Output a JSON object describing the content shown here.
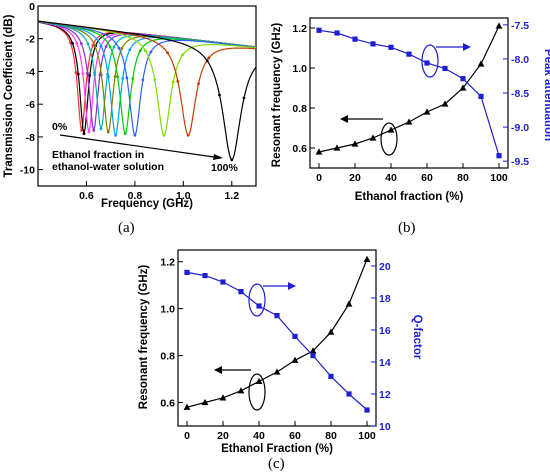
{
  "panels": {
    "a": "(a)",
    "b": "(b)",
    "c": "(c)"
  },
  "colors": {
    "black_series": "#000000",
    "blue_series": "#1f1fd0"
  },
  "chart_data": [
    {
      "id": "a",
      "type": "line",
      "xlabel": "Frequency (GHz)",
      "ylabel": "Transmission Coefficient (dB)",
      "xlim": [
        0.4,
        1.3
      ],
      "ylim": [
        -11,
        0
      ],
      "xticks": [
        0.6,
        0.8,
        1.0,
        1.2
      ],
      "yticks": [
        0,
        -2,
        -4,
        -6,
        -8,
        -10
      ],
      "annotations": {
        "start": "0%",
        "end": "100%",
        "note_line1": "Ethanol fraction in",
        "note_line2": "ethanol-water solution"
      },
      "series": [
        {
          "color": "#ff3030",
          "resonance_ghz": 0.58,
          "min_db": -7.6
        },
        {
          "color": "#000000",
          "resonance_ghz": 0.59,
          "min_db": -7.8
        },
        {
          "color": "#ff40ff",
          "resonance_ghz": 0.61,
          "min_db": -7.7
        },
        {
          "color": "#8a2be2",
          "resonance_ghz": 0.63,
          "min_db": -7.6
        },
        {
          "color": "#00b0b0",
          "resonance_ghz": 0.66,
          "min_db": -7.5
        },
        {
          "color": "#808000",
          "resonance_ghz": 0.69,
          "min_db": -7.7
        },
        {
          "color": "#00a0ff",
          "resonance_ghz": 0.72,
          "min_db": -7.9
        },
        {
          "color": "#00cc00",
          "resonance_ghz": 0.76,
          "min_db": -7.8
        },
        {
          "color": "#3060ff",
          "resonance_ghz": 0.8,
          "min_db": -7.9
        },
        {
          "color": "#7fe000",
          "resonance_ghz": 0.92,
          "min_db": -7.9
        },
        {
          "color": "#c04000",
          "resonance_ghz": 1.02,
          "min_db": -7.9
        },
        {
          "color": "#000000",
          "resonance_ghz": 1.2,
          "min_db": -9.4
        }
      ]
    },
    {
      "id": "b",
      "type": "line",
      "xlabel": "Ethanol fraction (%)",
      "ylabel": "Resonant frequency (GHz)",
      "y2label": "Peak attenuation",
      "xlim": [
        -5,
        105
      ],
      "ylim": [
        0.5,
        1.25
      ],
      "y2lim": [
        -9.6,
        -7.4
      ],
      "xticks": [
        0,
        20,
        40,
        60,
        80,
        100
      ],
      "yticks": [
        0.6,
        0.8,
        1.0,
        1.2
      ],
      "y2ticks": [
        -7.5,
        -8.0,
        -8.5,
        -9.0,
        -9.5
      ],
      "x": [
        0,
        10,
        20,
        30,
        40,
        50,
        60,
        70,
        80,
        90,
        100
      ],
      "series": [
        {
          "axis": "left",
          "marker": "triangle",
          "values": [
            0.58,
            0.6,
            0.62,
            0.65,
            0.69,
            0.73,
            0.78,
            0.82,
            0.9,
            1.02,
            1.21
          ]
        },
        {
          "axis": "right",
          "marker": "square",
          "values": [
            -7.58,
            -7.62,
            -7.71,
            -7.78,
            -7.83,
            -7.93,
            -8.06,
            -8.14,
            -8.29,
            -8.55,
            -9.42
          ]
        }
      ]
    },
    {
      "id": "c",
      "type": "line",
      "xlabel": "Ethanol Fraction (%)",
      "ylabel": "Resonant frequency (GHz)",
      "y2label": "Q-factor",
      "xlim": [
        -5,
        105
      ],
      "ylim": [
        0.5,
        1.25
      ],
      "y2lim": [
        10,
        21
      ],
      "xticks": [
        0,
        20,
        40,
        60,
        80,
        100
      ],
      "yticks": [
        0.6,
        0.8,
        1.0,
        1.2
      ],
      "y2ticks": [
        10,
        12,
        14,
        16,
        18,
        20
      ],
      "x": [
        0,
        10,
        20,
        30,
        40,
        50,
        60,
        70,
        80,
        90,
        100
      ],
      "series": [
        {
          "axis": "left",
          "marker": "triangle",
          "values": [
            0.58,
            0.6,
            0.62,
            0.65,
            0.69,
            0.73,
            0.78,
            0.82,
            0.9,
            1.02,
            1.21
          ]
        },
        {
          "axis": "right",
          "marker": "square",
          "values": [
            19.6,
            19.4,
            19.0,
            18.4,
            17.5,
            16.9,
            15.6,
            14.4,
            13.1,
            12.0,
            11.0
          ]
        }
      ]
    }
  ]
}
